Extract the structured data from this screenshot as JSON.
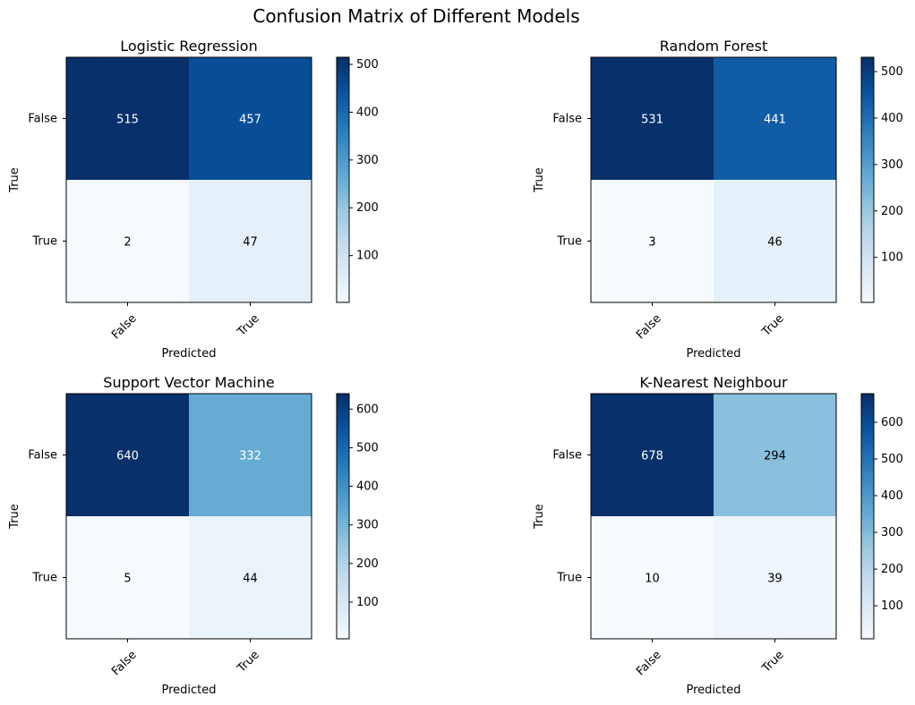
{
  "title": "Confusion Matrix of Different Models",
  "colormap": {
    "name": "Blues",
    "low": "#f7fbff",
    "high": "#08306b"
  },
  "chart_data": [
    {
      "type": "heatmap",
      "title": "Logistic Regression",
      "xlabel": "Predicted",
      "ylabel": "True",
      "x_categories": [
        "False",
        "True"
      ],
      "y_categories": [
        "False",
        "True"
      ],
      "values": [
        [
          515,
          457
        ],
        [
          2,
          47
        ]
      ],
      "colorbar_ticks": [
        100,
        200,
        300,
        400,
        500
      ],
      "color_range": [
        2,
        515
      ]
    },
    {
      "type": "heatmap",
      "title": "Random Forest",
      "xlabel": "Predicted",
      "ylabel": "True",
      "x_categories": [
        "False",
        "True"
      ],
      "y_categories": [
        "False",
        "True"
      ],
      "values": [
        [
          531,
          441
        ],
        [
          3,
          46
        ]
      ],
      "colorbar_ticks": [
        100,
        200,
        300,
        400,
        500
      ],
      "color_range": [
        3,
        531
      ]
    },
    {
      "type": "heatmap",
      "title": "Support Vector Machine",
      "xlabel": "Predicted",
      "ylabel": "True",
      "x_categories": [
        "False",
        "True"
      ],
      "y_categories": [
        "False",
        "True"
      ],
      "values": [
        [
          640,
          332
        ],
        [
          5,
          44
        ]
      ],
      "colorbar_ticks": [
        100,
        200,
        300,
        400,
        500,
        600
      ],
      "color_range": [
        5,
        640
      ]
    },
    {
      "type": "heatmap",
      "title": "K-Nearest Neighbour",
      "xlabel": "Predicted",
      "ylabel": "True",
      "x_categories": [
        "False",
        "True"
      ],
      "y_categories": [
        "False",
        "True"
      ],
      "values": [
        [
          678,
          294
        ],
        [
          10,
          39
        ]
      ],
      "colorbar_ticks": [
        100,
        200,
        300,
        400,
        500,
        600
      ],
      "color_range": [
        10,
        678
      ]
    }
  ]
}
